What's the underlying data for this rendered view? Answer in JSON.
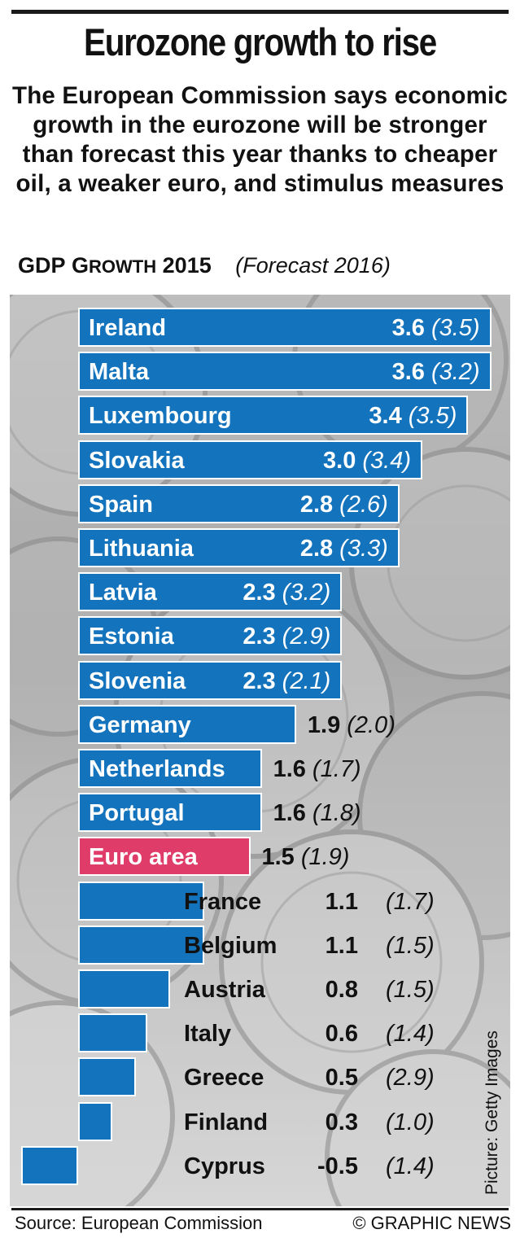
{
  "title": "Eurozone growth to rise",
  "subtitle": "The European Commission says economic growth in the eurozone will be stronger than forecast this year thanks to cheaper oil, a weaker euro, and stimulus measures",
  "header": {
    "gdp": "GDP",
    "growth_g": "G",
    "growth_rest": "ROWTH",
    "year": "2015",
    "forecast": "(Forecast 2016)"
  },
  "photo_credit": "Picture: Getty Images",
  "source": "Source: European Commission",
  "copyright": "© GRAPHIC NEWS",
  "colors": {
    "bar": "#1473bd",
    "highlight": "#e03c6a",
    "bar_border": "#ffffff"
  },
  "chart_data": {
    "type": "bar",
    "orientation": "horizontal",
    "title": "Eurozone growth to rise",
    "categories": [
      "Ireland",
      "Malta",
      "Luxembourg",
      "Slovakia",
      "Spain",
      "Lithuania",
      "Latvia",
      "Estonia",
      "Slovenia",
      "Germany",
      "Netherlands",
      "Portugal",
      "Euro area",
      "France",
      "Belgium",
      "Austria",
      "Italy",
      "Greece",
      "Finland",
      "Cyprus"
    ],
    "series": [
      {
        "name": "GDP growth 2015",
        "values": [
          3.6,
          3.6,
          3.4,
          3.0,
          2.8,
          2.8,
          2.3,
          2.3,
          2.3,
          1.9,
          1.6,
          1.6,
          1.5,
          1.1,
          1.1,
          0.8,
          0.6,
          0.5,
          0.3,
          -0.5
        ]
      },
      {
        "name": "Forecast 2016",
        "values": [
          3.5,
          3.2,
          3.5,
          3.4,
          2.6,
          3.3,
          3.2,
          2.9,
          2.1,
          2.0,
          1.7,
          1.8,
          1.9,
          1.7,
          1.5,
          1.5,
          1.4,
          2.9,
          1.0,
          1.4
        ]
      }
    ],
    "value_labels_2015": [
      "3.6",
      "3.6",
      "3.4",
      "3.0",
      "2.8",
      "2.8",
      "2.3",
      "2.3",
      "2.3",
      "1.9",
      "1.6",
      "1.6",
      "1.5",
      "1.1",
      "1.1",
      "0.8",
      "0.6",
      "0.5",
      "0.3",
      "-0.5"
    ],
    "value_labels_2016": [
      "(3.5)",
      "(3.2)",
      "(3.5)",
      "(3.4)",
      "(2.6)",
      "(3.3)",
      "(3.2)",
      "(2.9)",
      "(2.1)",
      "(2.0)",
      "(1.7)",
      "(1.8)",
      "(1.9)",
      "(1.7)",
      "(1.5)",
      "(1.5)",
      "(1.4)",
      "(2.9)",
      "(1.0)",
      "(1.4)"
    ],
    "highlight": "Euro area",
    "bars_show": "GDP growth 2015",
    "grid": false,
    "legend": "none"
  }
}
